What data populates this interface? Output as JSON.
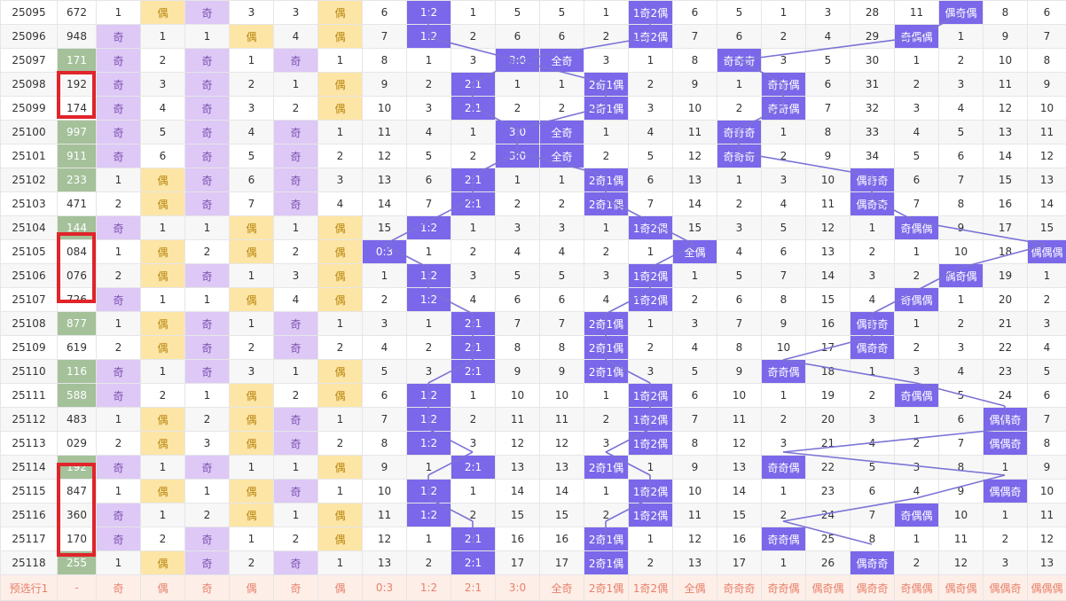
{
  "prefix_row_label": "预选行1",
  "prefix_row_cells": [
    "-",
    "奇",
    "偶",
    "奇",
    "偶",
    "奇",
    "偶",
    "0:3",
    "1:2",
    "2:1",
    "3:0",
    "全奇",
    "2奇1偶",
    "1奇2偶",
    "全偶",
    "奇奇奇",
    "奇奇偶",
    "偶奇偶",
    "偶奇奇",
    "奇偶偶",
    "偶奇偶",
    "偶偶奇",
    "偶偶偶"
  ],
  "rows": [
    {
      "id": "25095",
      "c": [
        "672",
        "1",
        "偶",
        "奇",
        "3",
        "3",
        "偶",
        "6",
        "1:2",
        "1",
        "5",
        "5",
        "1",
        "1奇2偶",
        "6",
        "5",
        "1",
        "3",
        "28",
        "11",
        "偶奇偶",
        "8",
        "6"
      ]
    },
    {
      "id": "25096",
      "c": [
        "948",
        "奇",
        "1",
        "1",
        "偶",
        "4",
        "偶",
        "7",
        "1:2",
        "2",
        "6",
        "6",
        "2",
        "1奇2偶",
        "7",
        "6",
        "2",
        "4",
        "29",
        "奇偶偶",
        "1",
        "9",
        "7"
      ]
    },
    {
      "id": "25097",
      "c": [
        "171",
        "奇",
        "2",
        "奇",
        "1",
        "奇",
        "1",
        "8",
        "1",
        "3",
        "3:0",
        "全奇",
        "3",
        "1",
        "8",
        "奇奇奇",
        "3",
        "5",
        "30",
        "1",
        "2",
        "10",
        "8"
      ]
    },
    {
      "id": "25098",
      "c": [
        "192",
        "奇",
        "3",
        "奇",
        "2",
        "1",
        "偶",
        "9",
        "2",
        "2:1",
        "1",
        "1",
        "2奇1偶",
        "2",
        "9",
        "1",
        "奇奇偶",
        "6",
        "31",
        "2",
        "3",
        "11",
        "9"
      ]
    },
    {
      "id": "25099",
      "c": [
        "174",
        "奇",
        "4",
        "奇",
        "3",
        "2",
        "偶",
        "10",
        "3",
        "2:1",
        "2",
        "2",
        "2奇1偶",
        "3",
        "10",
        "2",
        "奇奇偶",
        "7",
        "32",
        "3",
        "4",
        "12",
        "10"
      ]
    },
    {
      "id": "25100",
      "c": [
        "997",
        "奇",
        "5",
        "奇",
        "4",
        "奇",
        "1",
        "11",
        "4",
        "1",
        "3:0",
        "全奇",
        "1",
        "4",
        "11",
        "奇奇奇",
        "1",
        "8",
        "33",
        "4",
        "5",
        "13",
        "11"
      ]
    },
    {
      "id": "25101",
      "c": [
        "911",
        "奇",
        "6",
        "奇",
        "5",
        "奇",
        "2",
        "12",
        "5",
        "2",
        "3:0",
        "全奇",
        "2",
        "5",
        "12",
        "奇奇奇",
        "2",
        "9",
        "34",
        "5",
        "6",
        "14",
        "12"
      ]
    },
    {
      "id": "25102",
      "c": [
        "233",
        "1",
        "偶",
        "奇",
        "6",
        "奇",
        "3",
        "13",
        "6",
        "2:1",
        "1",
        "1",
        "2奇1偶",
        "6",
        "13",
        "1",
        "3",
        "10",
        "偶奇奇",
        "6",
        "7",
        "15",
        "13"
      ]
    },
    {
      "id": "25103",
      "c": [
        "471",
        "2",
        "偶",
        "奇",
        "7",
        "奇",
        "4",
        "14",
        "7",
        "2:1",
        "2",
        "2",
        "2奇1偶",
        "7",
        "14",
        "2",
        "4",
        "11",
        "偶奇奇",
        "7",
        "8",
        "16",
        "14"
      ]
    },
    {
      "id": "25104",
      "c": [
        "144",
        "奇",
        "1",
        "1",
        "偶",
        "1",
        "偶",
        "15",
        "1:2",
        "1",
        "3",
        "3",
        "1",
        "1奇2偶",
        "15",
        "3",
        "5",
        "12",
        "1",
        "奇偶偶",
        "9",
        "17",
        "15"
      ]
    },
    {
      "id": "25105",
      "c": [
        "084",
        "1",
        "偶",
        "2",
        "偶",
        "2",
        "偶",
        "0:3",
        "1",
        "2",
        "4",
        "4",
        "2",
        "1",
        "全偶",
        "4",
        "6",
        "13",
        "2",
        "1",
        "10",
        "18",
        "偶偶偶"
      ]
    },
    {
      "id": "25106",
      "c": [
        "076",
        "2",
        "偶",
        "奇",
        "1",
        "3",
        "偶",
        "1",
        "1:2",
        "3",
        "5",
        "5",
        "3",
        "1奇2偶",
        "1",
        "5",
        "7",
        "14",
        "3",
        "2",
        "偶奇偶",
        "19",
        "1"
      ]
    },
    {
      "id": "25107",
      "c": [
        "726",
        "奇",
        "1",
        "1",
        "偶",
        "4",
        "偶",
        "2",
        "1:2",
        "4",
        "6",
        "6",
        "4",
        "1奇2偶",
        "2",
        "6",
        "8",
        "15",
        "4",
        "奇偶偶",
        "1",
        "20",
        "2"
      ]
    },
    {
      "id": "25108",
      "c": [
        "877",
        "1",
        "偶",
        "奇",
        "1",
        "奇",
        "1",
        "3",
        "1",
        "2:1",
        "7",
        "7",
        "2奇1偶",
        "1",
        "3",
        "7",
        "9",
        "16",
        "偶奇奇",
        "1",
        "2",
        "21",
        "3"
      ]
    },
    {
      "id": "25109",
      "c": [
        "619",
        "2",
        "偶",
        "奇",
        "2",
        "奇",
        "2",
        "4",
        "2",
        "2:1",
        "8",
        "8",
        "2奇1偶",
        "2",
        "4",
        "8",
        "10",
        "17",
        "偶奇奇",
        "2",
        "3",
        "22",
        "4"
      ]
    },
    {
      "id": "25110",
      "c": [
        "116",
        "奇",
        "1",
        "奇",
        "3",
        "1",
        "偶",
        "5",
        "3",
        "2:1",
        "9",
        "9",
        "2奇1偶",
        "3",
        "5",
        "9",
        "奇奇偶",
        "18",
        "1",
        "3",
        "4",
        "23",
        "5"
      ]
    },
    {
      "id": "25111",
      "c": [
        "588",
        "奇",
        "2",
        "1",
        "偶",
        "2",
        "偶",
        "6",
        "1:2",
        "1",
        "10",
        "10",
        "1",
        "1奇2偶",
        "6",
        "10",
        "1",
        "19",
        "2",
        "奇偶偶",
        "5",
        "24",
        "6"
      ]
    },
    {
      "id": "25112",
      "c": [
        "483",
        "1",
        "偶",
        "2",
        "偶",
        "奇",
        "1",
        "7",
        "1:2",
        "2",
        "11",
        "11",
        "2",
        "1奇2偶",
        "7",
        "11",
        "2",
        "20",
        "3",
        "1",
        "6",
        "偶偶奇",
        "7"
      ]
    },
    {
      "id": "25113",
      "c": [
        "029",
        "2",
        "偶",
        "3",
        "偶",
        "奇",
        "2",
        "8",
        "1:2",
        "3",
        "12",
        "12",
        "3",
        "1奇2偶",
        "8",
        "12",
        "3",
        "21",
        "4",
        "2",
        "7",
        "偶偶奇",
        "8"
      ]
    },
    {
      "id": "25114",
      "c": [
        "192",
        "奇",
        "1",
        "奇",
        "1",
        "1",
        "偶",
        "9",
        "1",
        "2:1",
        "13",
        "13",
        "2奇1偶",
        "1",
        "9",
        "13",
        "奇奇偶",
        "22",
        "5",
        "3",
        "8",
        "1",
        "9"
      ]
    },
    {
      "id": "25115",
      "c": [
        "847",
        "1",
        "偶",
        "1",
        "偶",
        "奇",
        "1",
        "10",
        "1:2",
        "1",
        "14",
        "14",
        "1",
        "1奇2偶",
        "10",
        "14",
        "1",
        "23",
        "6",
        "4",
        "9",
        "偶偶奇",
        "10"
      ]
    },
    {
      "id": "25116",
      "c": [
        "360",
        "奇",
        "1",
        "2",
        "偶",
        "1",
        "偶",
        "11",
        "1:2",
        "2",
        "15",
        "15",
        "2",
        "1奇2偶",
        "11",
        "15",
        "2",
        "24",
        "7",
        "奇偶偶",
        "10",
        "1",
        "11"
      ]
    },
    {
      "id": "25117",
      "c": [
        "170",
        "奇",
        "2",
        "奇",
        "1",
        "2",
        "偶",
        "12",
        "1",
        "2:1",
        "16",
        "16",
        "2奇1偶",
        "1",
        "12",
        "16",
        "奇奇偶",
        "25",
        "8",
        "1",
        "11",
        "2",
        "12"
      ]
    },
    {
      "id": "25118",
      "c": [
        "255",
        "1",
        "偶",
        "奇",
        "2",
        "奇",
        "1",
        "13",
        "2",
        "2:1",
        "17",
        "17",
        "2奇1偶",
        "2",
        "13",
        "17",
        "1",
        "26",
        "偶奇奇",
        "2",
        "12",
        "3",
        "13"
      ]
    }
  ],
  "highlighted_number_rows": [
    "25097",
    "25100",
    "25101",
    "25102",
    "25104",
    "25108",
    "25110",
    "25111",
    "25114",
    "25118"
  ],
  "boxed_number_ranges": [
    [
      "25098",
      "25099"
    ],
    [
      "25105",
      "25107"
    ],
    [
      "25115",
      "25118"
    ]
  ],
  "colors": {
    "odd_bg": "#ddc8f6",
    "even_bg": "#fde5a6",
    "num_hl_bg": "#a4c19a",
    "hit_bg": "#7a67ea",
    "line": "#7b73d6",
    "box": "#e0242a",
    "footer_bg": "#fdeee8",
    "footer_text": "#e8816a"
  }
}
